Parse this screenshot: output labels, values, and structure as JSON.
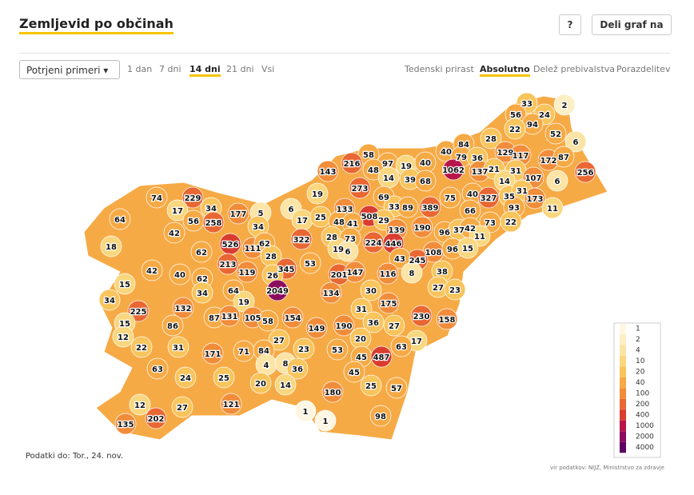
{
  "header": {
    "title": "Zemljevid po občinah",
    "help": "?",
    "share": "Deli graf na"
  },
  "controls": {
    "select": "Potrjeni primeri",
    "periods": [
      "1 dan",
      "7 dni",
      "14 dni",
      "21 dni",
      "Vsi"
    ],
    "active_period": 2,
    "modes": [
      "Tedenski prirast",
      "Absolutno",
      "Delež prebivalstva",
      "Porazdelitev"
    ],
    "active_mode": 1
  },
  "map": {
    "values": [
      33,
      2,
      56,
      24,
      94,
      22,
      52,
      28,
      6,
      40,
      84,
      79,
      36,
      129,
      117,
      172,
      87,
      58,
      97,
      19,
      40,
      216,
      143,
      48,
      1062,
      137,
      21,
      31,
      256,
      14,
      39,
      68,
      107,
      6,
      14,
      273,
      19,
      69,
      75,
      40,
      327,
      35,
      31,
      173,
      74,
      229,
      34,
      17,
      56,
      258,
      177,
      5,
      6,
      133,
      508,
      33,
      89,
      389,
      66,
      93,
      11,
      17,
      25,
      48,
      41,
      29,
      73,
      22,
      64,
      42,
      34,
      139,
      190,
      96,
      37,
      42,
      11,
      322,
      28,
      73,
      224,
      446,
      526,
      111,
      62,
      19,
      6,
      18,
      62,
      28,
      53,
      108,
      96,
      15,
      245,
      43,
      213,
      345,
      42,
      119,
      26,
      201,
      147,
      116,
      8,
      38,
      40,
      62,
      15,
      2049,
      134,
      30,
      27,
      23,
      64,
      34,
      34,
      19,
      175,
      225,
      132,
      31,
      87,
      131,
      105,
      58,
      154,
      230,
      158,
      15,
      86,
      149,
      190,
      36,
      27,
      12,
      20,
      17,
      63,
      22,
      31,
      27,
      23,
      71,
      84,
      171,
      53,
      45,
      487,
      4,
      8,
      36,
      63,
      24,
      25,
      45,
      20,
      14,
      25,
      57,
      180,
      121,
      12,
      27,
      1,
      202,
      98,
      1,
      135
    ],
    "legend": {
      "thresholds": [
        1,
        2,
        4,
        10,
        20,
        40,
        100,
        200,
        400,
        1000,
        2000,
        4000
      ],
      "colors": [
        "#fff7e3",
        "#fcefc5",
        "#fbe4a5",
        "#f9d77f",
        "#f8c45c",
        "#f6aa45",
        "#f18c3a",
        "#e96733",
        "#da3c30",
        "#b8164a",
        "#8c0c5e",
        "#5c0565"
      ]
    }
  },
  "footer": {
    "date": "Podatki do: Tor., 24. nov.",
    "source": "vir podatkov: NIJZ, Ministrstvo za zdravje"
  }
}
